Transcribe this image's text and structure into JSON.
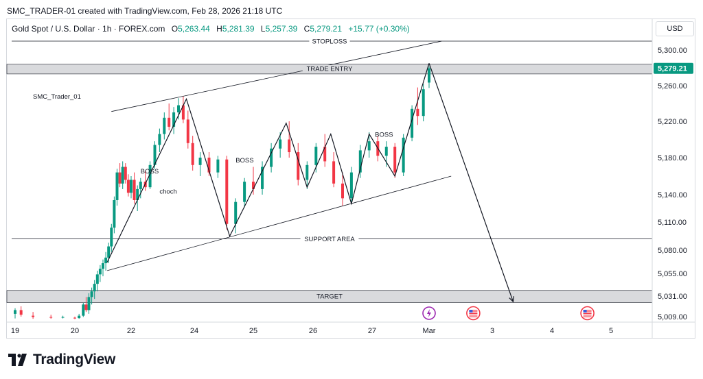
{
  "header": {
    "caption": "SMC_TRADER-01 created with TradingView.com, Feb 28, 2026 21:18 UTC"
  },
  "legend": {
    "symbol": "Gold Spot / U.S. Dollar · 1h · FOREX.com",
    "open_label": "O",
    "open": "5,263.44",
    "high_label": "H",
    "high": "5,281.39",
    "low_label": "L",
    "low": "5,257.39",
    "close_label": "C",
    "close": "5,279.21",
    "change": "+15.77 (+0.30%)"
  },
  "currency_button": "USD",
  "branding": {
    "logo_text": "TradingView",
    "icon": "tradingview-logo-icon"
  },
  "colors": {
    "up": "#089981",
    "down": "#f23645",
    "zone": "#d9dadd",
    "line": "#131722",
    "price_tag": "#089981"
  },
  "chart_data": {
    "type": "candlestick",
    "watermark": "SMC_Trader_01",
    "last_price": 5279.21,
    "x_axis": {
      "tick_labels": [
        "19",
        "20",
        "22",
        "24",
        "25",
        "26",
        "27",
        "Mar",
        "3",
        "4",
        "5"
      ]
    },
    "y_axis": {
      "tick_labels": [
        {
          "label": "5,300.00",
          "value": 5300
        },
        {
          "label": "5,260.00",
          "value": 5260
        },
        {
          "label": "5,220.00",
          "value": 5220
        },
        {
          "label": "5,180.00",
          "value": 5180
        },
        {
          "label": "5,140.00",
          "value": 5140
        },
        {
          "label": "5,110.00",
          "value": 5110
        },
        {
          "label": "5,080.00",
          "value": 5080
        },
        {
          "label": "5,055.00",
          "value": 5055
        },
        {
          "label": "5,031.00",
          "value": 5031
        },
        {
          "label": "5,009.00",
          "value": 5009
        }
      ]
    },
    "levels": [
      {
        "name": "STOPLOSS",
        "value": 5317,
        "kind": "line"
      },
      {
        "name": "TRADE ENTRY",
        "value": 5279,
        "kind": "zone",
        "from": 5273,
        "to": 5284
      },
      {
        "name": "SUPPORT AREA",
        "value": 5092,
        "kind": "line"
      },
      {
        "name": "TARGET",
        "value": 5031,
        "kind": "zone",
        "from": 5024,
        "to": 5037
      }
    ],
    "annotations": [
      {
        "text": "BOSS",
        "day": 22.3,
        "price": 5163
      },
      {
        "text": "choch",
        "day": 22.9,
        "price": 5141
      },
      {
        "text": "BOSS",
        "day": 24.7,
        "price": 5175
      },
      {
        "text": "BOSS",
        "day": 27.05,
        "price": 5203
      }
    ],
    "channel": {
      "upper": [
        {
          "day": 21.3,
          "price": 5231
        },
        {
          "day": 28.2,
          "price": 5317
        }
      ],
      "lower": [
        {
          "day": 21.15,
          "price": 5058
        },
        {
          "day": 28.35,
          "price": 5160
        }
      ]
    },
    "swing_path": [
      {
        "day": 21.15,
        "price": 5067
      },
      {
        "day": 23.75,
        "price": 5245
      },
      {
        "day": 24.6,
        "price": 5095
      },
      {
        "day": 25.55,
        "price": 5218
      },
      {
        "day": 25.9,
        "price": 5148
      },
      {
        "day": 26.3,
        "price": 5206
      },
      {
        "day": 26.65,
        "price": 5130
      },
      {
        "day": 26.95,
        "price": 5206
      },
      {
        "day": 27.4,
        "price": 5160
      },
      {
        "day": 28.0,
        "price": 5285
      }
    ],
    "projection": [
      {
        "day": 28.0,
        "price": 5285
      },
      {
        "day": 29.35,
        "price": 5025
      }
    ],
    "event_markers": [
      {
        "day": 28.0,
        "type": "lightning-icon"
      },
      {
        "day": 28.7,
        "type": "us-flag-icon"
      },
      {
        "day": 30.6,
        "type": "us-flag-icon"
      }
    ],
    "candles": [
      {
        "t": 19.0,
        "o": 5012,
        "h": 5018,
        "l": 5004,
        "c": 5016
      },
      {
        "t": 19.1,
        "o": 5016,
        "h": 5020,
        "l": 5009,
        "c": 5011
      },
      {
        "t": 19.3,
        "o": 5010,
        "h": 5014,
        "l": 5003,
        "c": 5008
      },
      {
        "t": 19.6,
        "o": 5008,
        "h": 5011,
        "l": 5003,
        "c": 5006
      },
      {
        "t": 19.8,
        "o": 5006,
        "h": 5010,
        "l": 5004,
        "c": 5008
      },
      {
        "t": 20.0,
        "o": 5006,
        "h": 5009,
        "l": 5002,
        "c": 5004
      },
      {
        "t": 20.15,
        "o": 5005,
        "h": 5012,
        "l": 5003,
        "c": 5010
      },
      {
        "t": 20.3,
        "o": 5010,
        "h": 5024,
        "l": 5008,
        "c": 5022
      },
      {
        "t": 20.4,
        "o": 5022,
        "h": 5030,
        "l": 5014,
        "c": 5016
      },
      {
        "t": 20.5,
        "o": 5016,
        "h": 5034,
        "l": 5012,
        "c": 5030
      },
      {
        "t": 20.6,
        "o": 5030,
        "h": 5040,
        "l": 5022,
        "c": 5036
      },
      {
        "t": 20.7,
        "o": 5036,
        "h": 5048,
        "l": 5028,
        "c": 5044
      },
      {
        "t": 20.8,
        "o": 5044,
        "h": 5058,
        "l": 5036,
        "c": 5054
      },
      {
        "t": 20.9,
        "o": 5054,
        "h": 5064,
        "l": 5046,
        "c": 5060
      },
      {
        "t": 21.0,
        "o": 5060,
        "h": 5070,
        "l": 5052,
        "c": 5066
      },
      {
        "t": 21.1,
        "o": 5066,
        "h": 5078,
        "l": 5058,
        "c": 5072
      },
      {
        "t": 21.2,
        "o": 5072,
        "h": 5088,
        "l": 5066,
        "c": 5084
      },
      {
        "t": 21.3,
        "o": 5084,
        "h": 5108,
        "l": 5078,
        "c": 5104
      },
      {
        "t": 21.4,
        "o": 5104,
        "h": 5138,
        "l": 5098,
        "c": 5134
      },
      {
        "t": 21.5,
        "o": 5134,
        "h": 5168,
        "l": 5128,
        "c": 5164
      },
      {
        "t": 21.6,
        "o": 5164,
        "h": 5174,
        "l": 5148,
        "c": 5152
      },
      {
        "t": 21.7,
        "o": 5152,
        "h": 5176,
        "l": 5146,
        "c": 5170
      },
      {
        "t": 21.8,
        "o": 5170,
        "h": 5174,
        "l": 5152,
        "c": 5156
      },
      {
        "t": 21.9,
        "o": 5156,
        "h": 5162,
        "l": 5138,
        "c": 5142
      },
      {
        "t": 22.0,
        "o": 5142,
        "h": 5160,
        "l": 5136,
        "c": 5156
      },
      {
        "t": 22.1,
        "o": 5156,
        "h": 5164,
        "l": 5130,
        "c": 5134
      },
      {
        "t": 22.2,
        "o": 5134,
        "h": 5150,
        "l": 5122,
        "c": 5146
      },
      {
        "t": 22.3,
        "o": 5146,
        "h": 5158,
        "l": 5136,
        "c": 5154
      },
      {
        "t": 22.45,
        "o": 5154,
        "h": 5166,
        "l": 5144,
        "c": 5148
      },
      {
        "t": 22.6,
        "o": 5148,
        "h": 5176,
        "l": 5146,
        "c": 5172
      },
      {
        "t": 22.75,
        "o": 5172,
        "h": 5198,
        "l": 5168,
        "c": 5194
      },
      {
        "t": 22.9,
        "o": 5194,
        "h": 5212,
        "l": 5186,
        "c": 5206
      },
      {
        "t": 23.05,
        "o": 5206,
        "h": 5230,
        "l": 5200,
        "c": 5224
      },
      {
        "t": 23.2,
        "o": 5224,
        "h": 5240,
        "l": 5210,
        "c": 5214
      },
      {
        "t": 23.35,
        "o": 5214,
        "h": 5236,
        "l": 5206,
        "c": 5230
      },
      {
        "t": 23.5,
        "o": 5230,
        "h": 5246,
        "l": 5222,
        "c": 5238
      },
      {
        "t": 23.65,
        "o": 5238,
        "h": 5248,
        "l": 5218,
        "c": 5222
      },
      {
        "t": 23.8,
        "o": 5222,
        "h": 5232,
        "l": 5190,
        "c": 5196
      },
      {
        "t": 23.95,
        "o": 5196,
        "h": 5204,
        "l": 5166,
        "c": 5172
      },
      {
        "t": 24.1,
        "o": 5172,
        "h": 5186,
        "l": 5160,
        "c": 5180
      },
      {
        "t": 24.25,
        "o": 5180,
        "h": 5186,
        "l": 5160,
        "c": 5164
      },
      {
        "t": 24.4,
        "o": 5164,
        "h": 5182,
        "l": 5158,
        "c": 5178
      },
      {
        "t": 24.55,
        "o": 5178,
        "h": 5182,
        "l": 5102,
        "c": 5108
      },
      {
        "t": 24.7,
        "o": 5108,
        "h": 5136,
        "l": 5098,
        "c": 5132
      },
      {
        "t": 24.85,
        "o": 5132,
        "h": 5158,
        "l": 5126,
        "c": 5154
      },
      {
        "t": 25.0,
        "o": 5154,
        "h": 5170,
        "l": 5140,
        "c": 5146
      },
      {
        "t": 25.15,
        "o": 5146,
        "h": 5176,
        "l": 5140,
        "c": 5170
      },
      {
        "t": 25.3,
        "o": 5170,
        "h": 5196,
        "l": 5164,
        "c": 5190
      },
      {
        "t": 25.45,
        "o": 5190,
        "h": 5208,
        "l": 5180,
        "c": 5200
      },
      {
        "t": 25.6,
        "o": 5200,
        "h": 5220,
        "l": 5180,
        "c": 5186
      },
      {
        "t": 25.75,
        "o": 5186,
        "h": 5196,
        "l": 5150,
        "c": 5156
      },
      {
        "t": 25.9,
        "o": 5156,
        "h": 5176,
        "l": 5146,
        "c": 5172
      },
      {
        "t": 26.05,
        "o": 5172,
        "h": 5196,
        "l": 5164,
        "c": 5192
      },
      {
        "t": 26.2,
        "o": 5192,
        "h": 5206,
        "l": 5170,
        "c": 5176
      },
      {
        "t": 26.35,
        "o": 5176,
        "h": 5186,
        "l": 5148,
        "c": 5152
      },
      {
        "t": 26.5,
        "o": 5152,
        "h": 5164,
        "l": 5128,
        "c": 5136
      },
      {
        "t": 26.65,
        "o": 5136,
        "h": 5170,
        "l": 5130,
        "c": 5164
      },
      {
        "t": 26.8,
        "o": 5164,
        "h": 5194,
        "l": 5158,
        "c": 5188
      },
      {
        "t": 26.95,
        "o": 5188,
        "h": 5208,
        "l": 5180,
        "c": 5198
      },
      {
        "t": 27.1,
        "o": 5198,
        "h": 5204,
        "l": 5176,
        "c": 5182
      },
      {
        "t": 27.25,
        "o": 5182,
        "h": 5198,
        "l": 5170,
        "c": 5192
      },
      {
        "t": 27.4,
        "o": 5192,
        "h": 5196,
        "l": 5158,
        "c": 5164
      },
      {
        "t": 27.55,
        "o": 5164,
        "h": 5206,
        "l": 5160,
        "c": 5202
      },
      {
        "t": 27.7,
        "o": 5202,
        "h": 5238,
        "l": 5198,
        "c": 5234
      },
      {
        "t": 27.8,
        "o": 5234,
        "h": 5258,
        "l": 5216,
        "c": 5226
      },
      {
        "t": 27.9,
        "o": 5226,
        "h": 5262,
        "l": 5220,
        "c": 5256
      },
      {
        "t": 28.0,
        "o": 5263.44,
        "h": 5281.39,
        "l": 5257.39,
        "c": 5279.21
      }
    ]
  }
}
